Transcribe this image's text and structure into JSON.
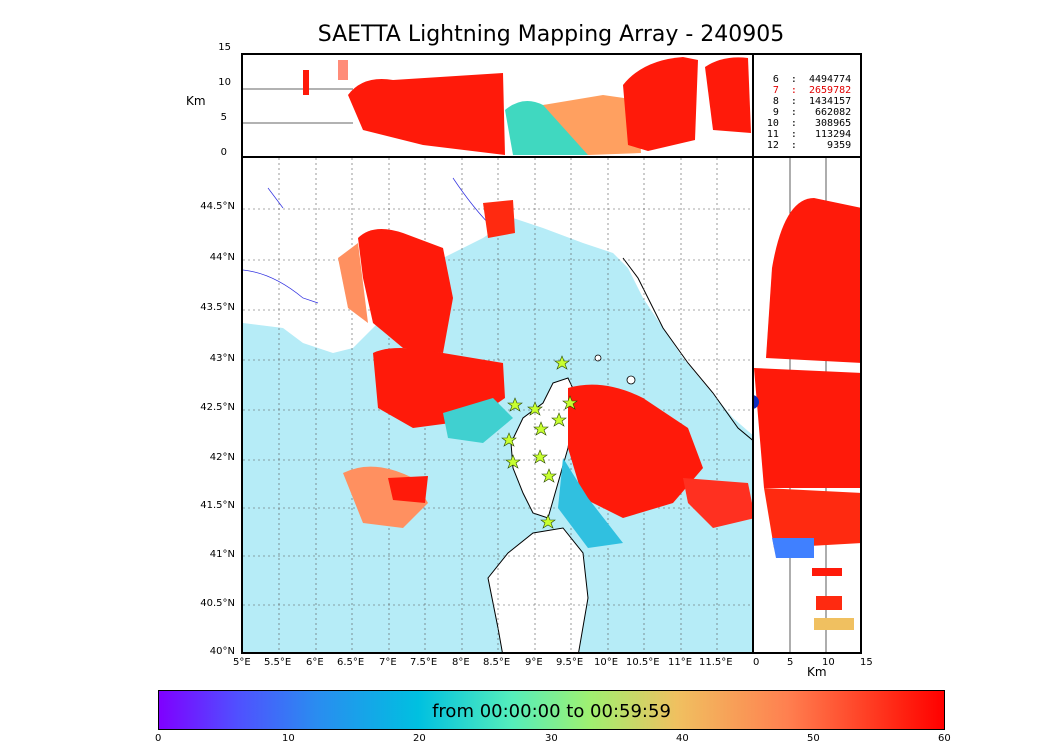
{
  "title": "SAETTA Lightning Mapping Array - 240905",
  "top_panel": {
    "ylabel": "Km",
    "yticks": [
      "15",
      "10",
      "5",
      "0"
    ]
  },
  "side_panel": {
    "xlabel": "Km",
    "xticks": [
      "0",
      "5",
      "10",
      "15"
    ]
  },
  "map": {
    "lat_ticks": [
      "44.5°N",
      "44°N",
      "43.5°N",
      "43°N",
      "42.5°N",
      "42°N",
      "41.5°N",
      "41°N",
      "40.5°N",
      "40°N"
    ],
    "lon_ticks": [
      "5°E",
      "5.5°E",
      "6°E",
      "6.5°E",
      "7°E",
      "7.5°E",
      "8°E",
      "8.5°E",
      "9°E",
      "9.5°E",
      "10°E",
      "10.5°E",
      "11°E",
      "11.5°E"
    ],
    "colors": {
      "sea": "#b6ecf7",
      "land": "#ffffff",
      "grid": "#555555",
      "rivers": "#3030e0"
    }
  },
  "stats": [
    {
      "label": " 6  :  4494774",
      "color": "#000000"
    },
    {
      "label": " 7  :  2659782",
      "color": "#e00000"
    },
    {
      "label": " 8  :  1434157",
      "color": "#000000"
    },
    {
      "label": " 9  :   662082",
      "color": "#000000"
    },
    {
      "label": "10  :   308965",
      "color": "#000000"
    },
    {
      "label": "11  :   113294",
      "color": "#000000"
    },
    {
      "label": "12  :     9359",
      "color": "#000000"
    }
  ],
  "colorbar": {
    "label": "from 00:00:00 to 00:59:59",
    "ticks": [
      "0",
      "10",
      "20",
      "30",
      "40",
      "50",
      "60"
    ],
    "range": [
      0,
      60
    ]
  }
}
